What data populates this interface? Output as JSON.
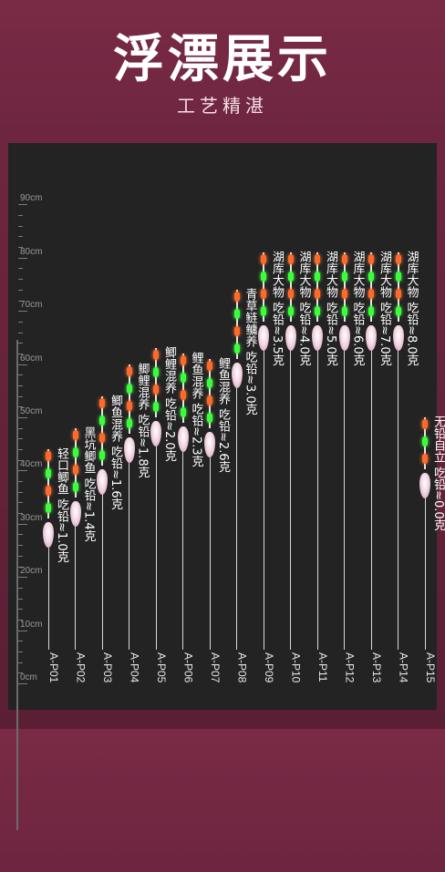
{
  "header": {
    "title": "浮漂展示",
    "subtitle": "工艺精湛"
  },
  "ruler": {
    "unit": "cm",
    "labels": [
      "90cm",
      "80cm",
      "70cm",
      "60cm",
      "50cm",
      "40cm",
      "30cm",
      "20cm",
      "10cm",
      "0cm"
    ],
    "values": [
      90,
      80,
      70,
      60,
      50,
      40,
      30,
      20,
      10,
      0
    ]
  },
  "floats": [
    {
      "code": "A-P01",
      "desc": "轻口鲫鱼 吃铅≈1.0克",
      "length_cm": 44,
      "lights": [
        "orange",
        "green",
        "orange",
        "green"
      ]
    },
    {
      "code": "A-P02",
      "desc": "黑坑鲫鱼 吃铅≈1.4克",
      "length_cm": 48,
      "lights": [
        "orange",
        "green",
        "orange",
        "green"
      ]
    },
    {
      "code": "A-P03",
      "desc": "鲫鱼混养 吃铅≈1.6克",
      "length_cm": 54,
      "lights": [
        "orange",
        "green",
        "orange",
        "green"
      ]
    },
    {
      "code": "A-P04",
      "desc": "鲫鲤混养 吃铅≈1.8克",
      "length_cm": 60,
      "lights": [
        "orange",
        "green",
        "orange",
        "green"
      ]
    },
    {
      "code": "A-P05",
      "desc": "鲫鲤混养 吃铅≈2.0克",
      "length_cm": 63,
      "lights": [
        "orange",
        "green",
        "orange",
        "green"
      ]
    },
    {
      "code": "A-P06",
      "desc": "鲤鱼混养 吃铅≈2.3克",
      "length_cm": 62,
      "lights": [
        "orange",
        "green",
        "orange",
        "green"
      ]
    },
    {
      "code": "A-P07",
      "desc": "鲤鱼混养 吃铅≈2.6克",
      "length_cm": 61,
      "lights": [
        "orange",
        "green",
        "orange",
        "green"
      ]
    },
    {
      "code": "A-P08",
      "desc": "青草鲢鳙养 吃铅≈3.0克",
      "length_cm": 74,
      "lights": [
        "orange",
        "green",
        "orange",
        "green"
      ]
    },
    {
      "code": "A-P09",
      "desc": "湖库大物 吃铅≈3.5克",
      "length_cm": 81,
      "lights": [
        "orange",
        "green",
        "orange",
        "green"
      ]
    },
    {
      "code": "A-P10",
      "desc": "湖库大物 吃铅≈4.0克",
      "length_cm": 81,
      "lights": [
        "orange",
        "green",
        "orange",
        "green"
      ]
    },
    {
      "code": "A-P11",
      "desc": "湖库大物 吃铅≈5.0克",
      "length_cm": 81,
      "lights": [
        "orange",
        "green",
        "orange",
        "green"
      ]
    },
    {
      "code": "A-P12",
      "desc": "湖库大物 吃铅≈6.0克",
      "length_cm": 81,
      "lights": [
        "orange",
        "green",
        "orange",
        "green"
      ]
    },
    {
      "code": "A-P13",
      "desc": "湖库大物 吃铅≈7.0克",
      "length_cm": 81,
      "lights": [
        "orange",
        "green",
        "orange",
        "green"
      ]
    },
    {
      "code": "A-P14",
      "desc": "湖库大物 吃铅≈8.0克",
      "length_cm": 81,
      "lights": [
        "orange",
        "green",
        "orange",
        "green"
      ]
    },
    {
      "code": "A-P15",
      "desc": "无铅自立 吃铅≈0.0克",
      "length_cm": 50,
      "lights": [
        "orange",
        "green",
        "orange"
      ]
    }
  ],
  "colors": {
    "panel": "#232323",
    "orange_light": "#ff6a2a",
    "green_light": "#3cff3c"
  }
}
